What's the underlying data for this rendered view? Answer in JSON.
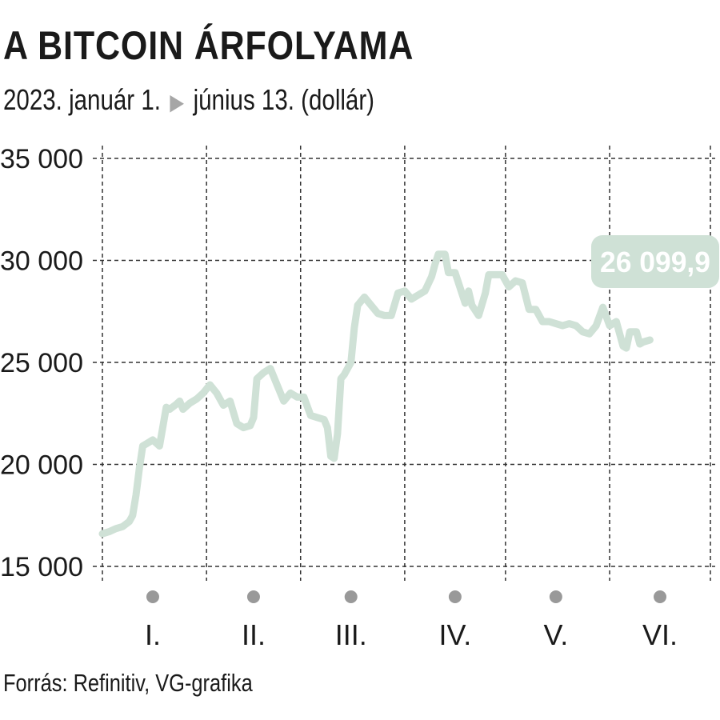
{
  "header": {
    "title": "A BITCOIN ÁRFOLYAMA",
    "subtitle_start": "2023. január 1.",
    "subtitle_end": "június 13. (dollár)"
  },
  "footer": {
    "source": "Forrás: Refinitiv, VG-grafika"
  },
  "colors": {
    "line": "#cfe1d6",
    "grid": "#333333",
    "label_bg": "#cfe1d6",
    "month_dot": "#999999",
    "arrow": "#a6a6a6"
  },
  "chart_data": {
    "type": "line",
    "title": "A BITCOIN ÁRFOLYAMA",
    "subtitle": "2023. január 1. ▶ június 13. (dollár)",
    "xlabel": "",
    "ylabel": "",
    "ylim": [
      15000,
      35000
    ],
    "yticks": [
      15000,
      20000,
      25000,
      30000,
      35000
    ],
    "ytick_labels": [
      "15 000",
      "20 000",
      "25 000",
      "30 000",
      "35 000"
    ],
    "xlim": [
      "2023-01-01",
      "2023-07-01"
    ],
    "x_grid_dates": [
      "2023-01-01",
      "2023-02-01",
      "2023-03-01",
      "2023-04-01",
      "2023-05-01",
      "2023-06-01",
      "2023-07-01"
    ],
    "month_labels": [
      {
        "label": "I.",
        "date": "2023-01-16"
      },
      {
        "label": "II.",
        "date": "2023-02-15"
      },
      {
        "label": "III.",
        "date": "2023-03-16"
      },
      {
        "label": "IV.",
        "date": "2023-04-16"
      },
      {
        "label": "V.",
        "date": "2023-05-16"
      },
      {
        "label": "VI.",
        "date": "2023-06-16"
      }
    ],
    "grid": true,
    "end_label": "26 099,9",
    "series": [
      {
        "x": [
          "2023-01-01",
          "2023-01-03",
          "2023-01-05",
          "2023-01-07",
          "2023-01-09",
          "2023-01-10",
          "2023-01-11",
          "2023-01-12",
          "2023-01-13",
          "2023-01-14",
          "2023-01-16",
          "2023-01-18",
          "2023-01-20",
          "2023-01-21",
          "2023-01-23",
          "2023-01-24",
          "2023-01-25",
          "2023-01-27",
          "2023-01-29",
          "2023-01-31",
          "2023-02-02",
          "2023-02-04",
          "2023-02-06",
          "2023-02-08",
          "2023-02-10",
          "2023-02-12",
          "2023-02-14",
          "2023-02-15",
          "2023-02-16",
          "2023-02-18",
          "2023-02-20",
          "2023-02-22",
          "2023-02-24",
          "2023-02-26",
          "2023-02-28",
          "2023-03-02",
          "2023-03-04",
          "2023-03-06",
          "2023-03-08",
          "2023-03-09",
          "2023-03-10",
          "2023-03-11",
          "2023-03-12",
          "2023-03-13",
          "2023-03-14",
          "2023-03-16",
          "2023-03-17",
          "2023-03-18",
          "2023-03-20",
          "2023-03-22",
          "2023-03-24",
          "2023-03-26",
          "2023-03-28",
          "2023-03-30",
          "2023-04-01",
          "2023-04-03",
          "2023-04-05",
          "2023-04-07",
          "2023-04-09",
          "2023-04-10",
          "2023-04-11",
          "2023-04-13",
          "2023-04-14",
          "2023-04-16",
          "2023-04-18",
          "2023-04-19",
          "2023-04-20",
          "2023-04-21",
          "2023-04-23",
          "2023-04-25",
          "2023-04-26",
          "2023-04-28",
          "2023-04-30",
          "2023-05-02",
          "2023-05-04",
          "2023-05-06",
          "2023-05-08",
          "2023-05-10",
          "2023-05-12",
          "2023-05-14",
          "2023-05-16",
          "2023-05-18",
          "2023-05-20",
          "2023-05-22",
          "2023-05-24",
          "2023-05-26",
          "2023-05-28",
          "2023-05-30",
          "2023-06-01",
          "2023-06-03",
          "2023-06-05",
          "2023-06-06",
          "2023-06-07",
          "2023-06-09",
          "2023-06-10",
          "2023-06-11",
          "2023-06-13"
        ],
        "values": [
          16600,
          16700,
          16850,
          16950,
          17200,
          17500,
          18500,
          19800,
          20900,
          21000,
          21200,
          20900,
          22800,
          22700,
          22950,
          23100,
          22700,
          23000,
          23200,
          23500,
          23900,
          23500,
          22900,
          23100,
          22000,
          21800,
          21900,
          22300,
          24200,
          24500,
          24700,
          23900,
          23100,
          23500,
          23300,
          23300,
          22400,
          22300,
          22200,
          21800,
          20400,
          20300,
          21500,
          24200,
          24400,
          25000,
          26700,
          27800,
          28200,
          27800,
          27400,
          27300,
          27300,
          28400,
          28500,
          28100,
          28300,
          28500,
          29200,
          29800,
          30300,
          30300,
          29400,
          29400,
          28400,
          27900,
          28500,
          27800,
          27300,
          28400,
          29300,
          29300,
          29300,
          28700,
          29000,
          28900,
          27600,
          27600,
          27000,
          27000,
          26900,
          26800,
          26900,
          26800,
          26500,
          26400,
          26800,
          27700,
          26800,
          27000,
          25800,
          25700,
          26500,
          26500,
          25900,
          26000,
          26099.9
        ]
      }
    ]
  }
}
